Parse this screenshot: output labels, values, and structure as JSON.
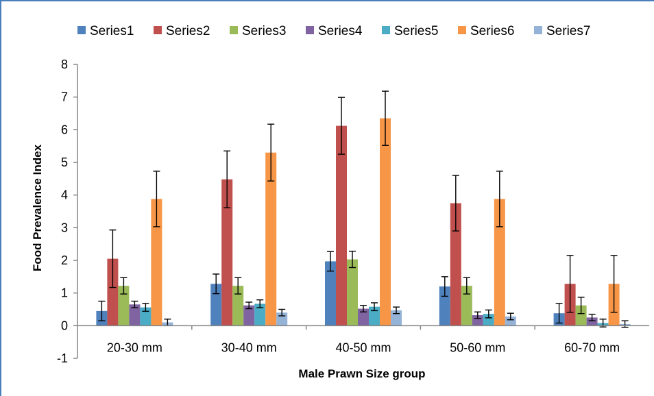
{
  "chart_data": {
    "type": "bar",
    "title": "",
    "xlabel": "Male Prawn Size group",
    "ylabel": "Food Prevalence Index",
    "ylim": [
      -1,
      8
    ],
    "yticks": [
      "-1",
      "0",
      "1",
      "2",
      "3",
      "4",
      "5",
      "6",
      "7",
      "8"
    ],
    "grid": false,
    "legend_position": "top",
    "categories": [
      "20-30 mm",
      "30-40 mm",
      "40-50 mm",
      "50-60 mm",
      "60-70 mm"
    ],
    "series": [
      {
        "name": "Series1",
        "color": "#4f81bd",
        "values": [
          0.45,
          1.28,
          1.97,
          1.2,
          0.38
        ],
        "errors": [
          0.3,
          0.3,
          0.3,
          0.3,
          0.3
        ]
      },
      {
        "name": "Series2",
        "color": "#c0504d",
        "values": [
          2.05,
          4.48,
          6.12,
          3.75,
          1.28
        ],
        "errors": [
          0.88,
          0.87,
          0.87,
          0.85,
          0.87
        ]
      },
      {
        "name": "Series3",
        "color": "#9bbb59",
        "values": [
          1.22,
          1.22,
          2.03,
          1.22,
          0.62
        ],
        "errors": [
          0.25,
          0.25,
          0.25,
          0.25,
          0.25
        ]
      },
      {
        "name": "Series4",
        "color": "#8064a2",
        "values": [
          0.65,
          0.62,
          0.52,
          0.32,
          0.25
        ],
        "errors": [
          0.1,
          0.1,
          0.1,
          0.1,
          0.1
        ]
      },
      {
        "name": "Series5",
        "color": "#4bacc6",
        "values": [
          0.56,
          0.67,
          0.58,
          0.36,
          0.08
        ],
        "errors": [
          0.12,
          0.12,
          0.12,
          0.12,
          0.12
        ]
      },
      {
        "name": "Series6",
        "color": "#f79646",
        "values": [
          3.88,
          5.3,
          6.35,
          3.88,
          1.28
        ],
        "errors": [
          0.85,
          0.87,
          0.83,
          0.85,
          0.87
        ]
      },
      {
        "name": "Series7",
        "color": "#95b3d7",
        "values": [
          0.1,
          0.4,
          0.47,
          0.28,
          0.05
        ],
        "errors": [
          0.1,
          0.1,
          0.1,
          0.1,
          0.1
        ]
      }
    ]
  }
}
